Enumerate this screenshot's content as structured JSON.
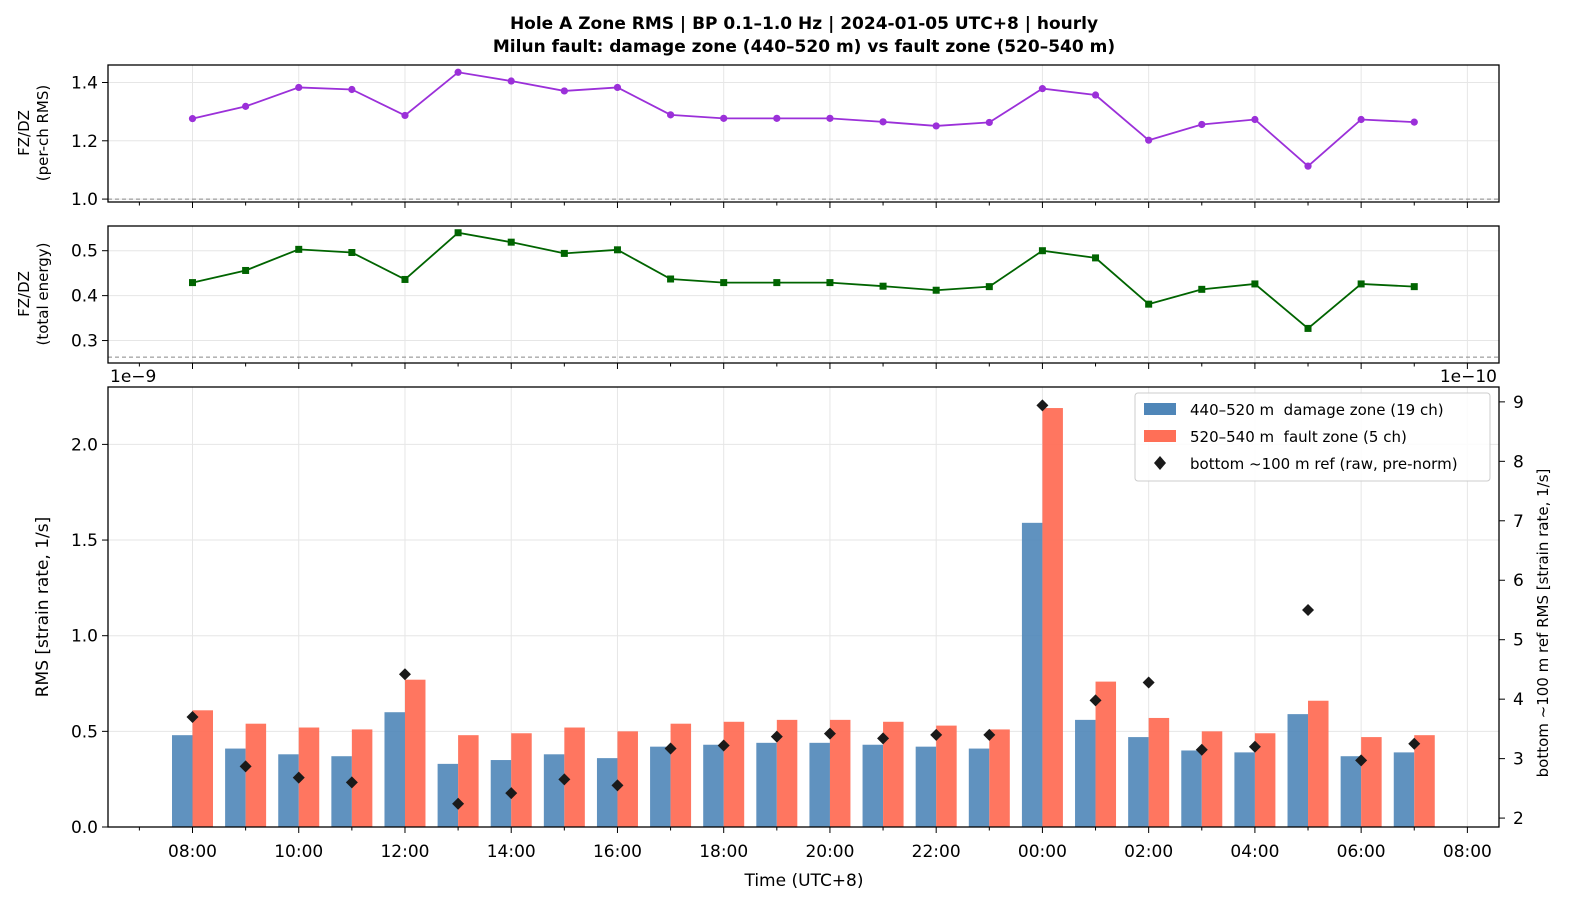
{
  "figure": {
    "title_line1": "Hole A Zone RMS  |  BP 0.1–1.0 Hz  |  2024-01-05 UTC+8  |  hourly",
    "title_line2": "Milun fault: damage zone (440–520 m) vs fault zone (520–540 m)",
    "xlabel": "Time (UTC+8)"
  },
  "chart_data": [
    {
      "type": "line",
      "panel": "ratio-per-channel",
      "ylabel_line1": "FZ/DZ",
      "ylabel_line2": "(per-ch RMS)",
      "ylim": [
        0.99,
        1.46
      ],
      "yticks": [
        "1.0",
        "1.2",
        "1.4"
      ],
      "ytick_values": [
        1.0,
        1.2,
        1.4
      ],
      "reference_line": 1.0,
      "color": "#9b30d9",
      "marker": "circle",
      "x": [
        "08:00",
        "09:00",
        "10:00",
        "11:00",
        "12:00",
        "13:00",
        "14:00",
        "15:00",
        "16:00",
        "17:00",
        "18:00",
        "19:00",
        "20:00",
        "21:00",
        "22:00",
        "23:00",
        "00:00",
        "01:00",
        "02:00",
        "03:00",
        "04:00",
        "05:00",
        "06:00",
        "07:00"
      ],
      "values": [
        1.276,
        1.318,
        1.383,
        1.376,
        1.287,
        1.435,
        1.405,
        1.371,
        1.383,
        1.289,
        1.277,
        1.277,
        1.277,
        1.265,
        1.251,
        1.263,
        1.379,
        1.357,
        1.202,
        1.256,
        1.273,
        1.113,
        1.273,
        1.264
      ],
      "grid": true
    },
    {
      "type": "line",
      "panel": "ratio-total-energy",
      "ylabel_line1": "FZ/DZ",
      "ylabel_line2": "(total energy)",
      "ylim": [
        0.25,
        0.555
      ],
      "yticks": [
        "0.3",
        "0.4",
        "0.5"
      ],
      "ytick_values": [
        0.3,
        0.4,
        0.5
      ],
      "reference_line": 0.263,
      "color": "#006400",
      "marker": "square",
      "x": [
        "08:00",
        "09:00",
        "10:00",
        "11:00",
        "12:00",
        "13:00",
        "14:00",
        "15:00",
        "16:00",
        "17:00",
        "18:00",
        "19:00",
        "20:00",
        "21:00",
        "22:00",
        "23:00",
        "00:00",
        "01:00",
        "02:00",
        "03:00",
        "04:00",
        "05:00",
        "06:00",
        "07:00"
      ],
      "values": [
        0.429,
        0.456,
        0.503,
        0.496,
        0.436,
        0.54,
        0.519,
        0.494,
        0.502,
        0.437,
        0.429,
        0.429,
        0.429,
        0.421,
        0.412,
        0.42,
        0.5,
        0.484,
        0.381,
        0.414,
        0.426,
        0.327,
        0.426,
        0.42
      ],
      "grid": true
    },
    {
      "type": "bar",
      "panel": "zone-rms",
      "ylabel": "RMS  [strain rate, 1/s]",
      "ylabel_right": "bottom ~100 m ref RMS  [strain rate, 1/s]",
      "y_offset_left": "1e−9",
      "y_offset_right": "1e−10",
      "ylim": [
        0,
        2.3
      ],
      "yticks": [
        "0.0",
        "0.5",
        "1.0",
        "1.5",
        "2.0"
      ],
      "ytick_values": [
        0.0,
        0.5,
        1.0,
        1.5,
        2.0
      ],
      "ylim_right": [
        1.85,
        9.25
      ],
      "yticks_right": [
        "2",
        "3",
        "4",
        "5",
        "6",
        "7",
        "8",
        "9"
      ],
      "ytick_values_right": [
        2,
        3,
        4,
        5,
        6,
        7,
        8,
        9
      ],
      "categories": [
        "08:00",
        "09:00",
        "10:00",
        "11:00",
        "12:00",
        "13:00",
        "14:00",
        "15:00",
        "16:00",
        "17:00",
        "18:00",
        "19:00",
        "20:00",
        "21:00",
        "22:00",
        "23:00",
        "00:00",
        "01:00",
        "02:00",
        "03:00",
        "04:00",
        "05:00",
        "06:00",
        "07:00"
      ],
      "series": [
        {
          "name": "440–520 m  damage zone (19 ch)",
          "color": "#4f86b8",
          "values": [
            0.48,
            0.41,
            0.38,
            0.37,
            0.6,
            0.33,
            0.35,
            0.38,
            0.36,
            0.42,
            0.43,
            0.44,
            0.44,
            0.43,
            0.42,
            0.41,
            1.59,
            0.56,
            0.47,
            0.4,
            0.39,
            0.59,
            0.37,
            0.39
          ]
        },
        {
          "name": "520–540 m  fault zone (5 ch)",
          "color": "#ff6f57",
          "values": [
            0.61,
            0.54,
            0.52,
            0.51,
            0.77,
            0.48,
            0.49,
            0.52,
            0.5,
            0.54,
            0.55,
            0.56,
            0.56,
            0.55,
            0.53,
            0.51,
            2.19,
            0.76,
            0.57,
            0.5,
            0.49,
            0.66,
            0.47,
            0.48
          ]
        },
        {
          "name": "bottom ~100 m ref (raw, pre-norm)",
          "color": "#1a1a1a",
          "marker": "diamond",
          "axis": "right",
          "values": [
            3.7,
            2.87,
            2.68,
            2.6,
            4.42,
            2.24,
            2.42,
            2.65,
            2.55,
            3.17,
            3.22,
            3.37,
            3.42,
            3.34,
            3.4,
            3.4,
            8.94,
            3.98,
            4.28,
            3.15,
            3.2,
            5.5,
            2.97,
            3.25
          ]
        }
      ],
      "legend_position": "top-right",
      "grid": true
    }
  ],
  "xaxis": {
    "tick_labels": [
      "08:00",
      "10:00",
      "12:00",
      "14:00",
      "16:00",
      "18:00",
      "20:00",
      "22:00",
      "00:00",
      "02:00",
      "04:00",
      "06:00",
      "08:00"
    ]
  }
}
